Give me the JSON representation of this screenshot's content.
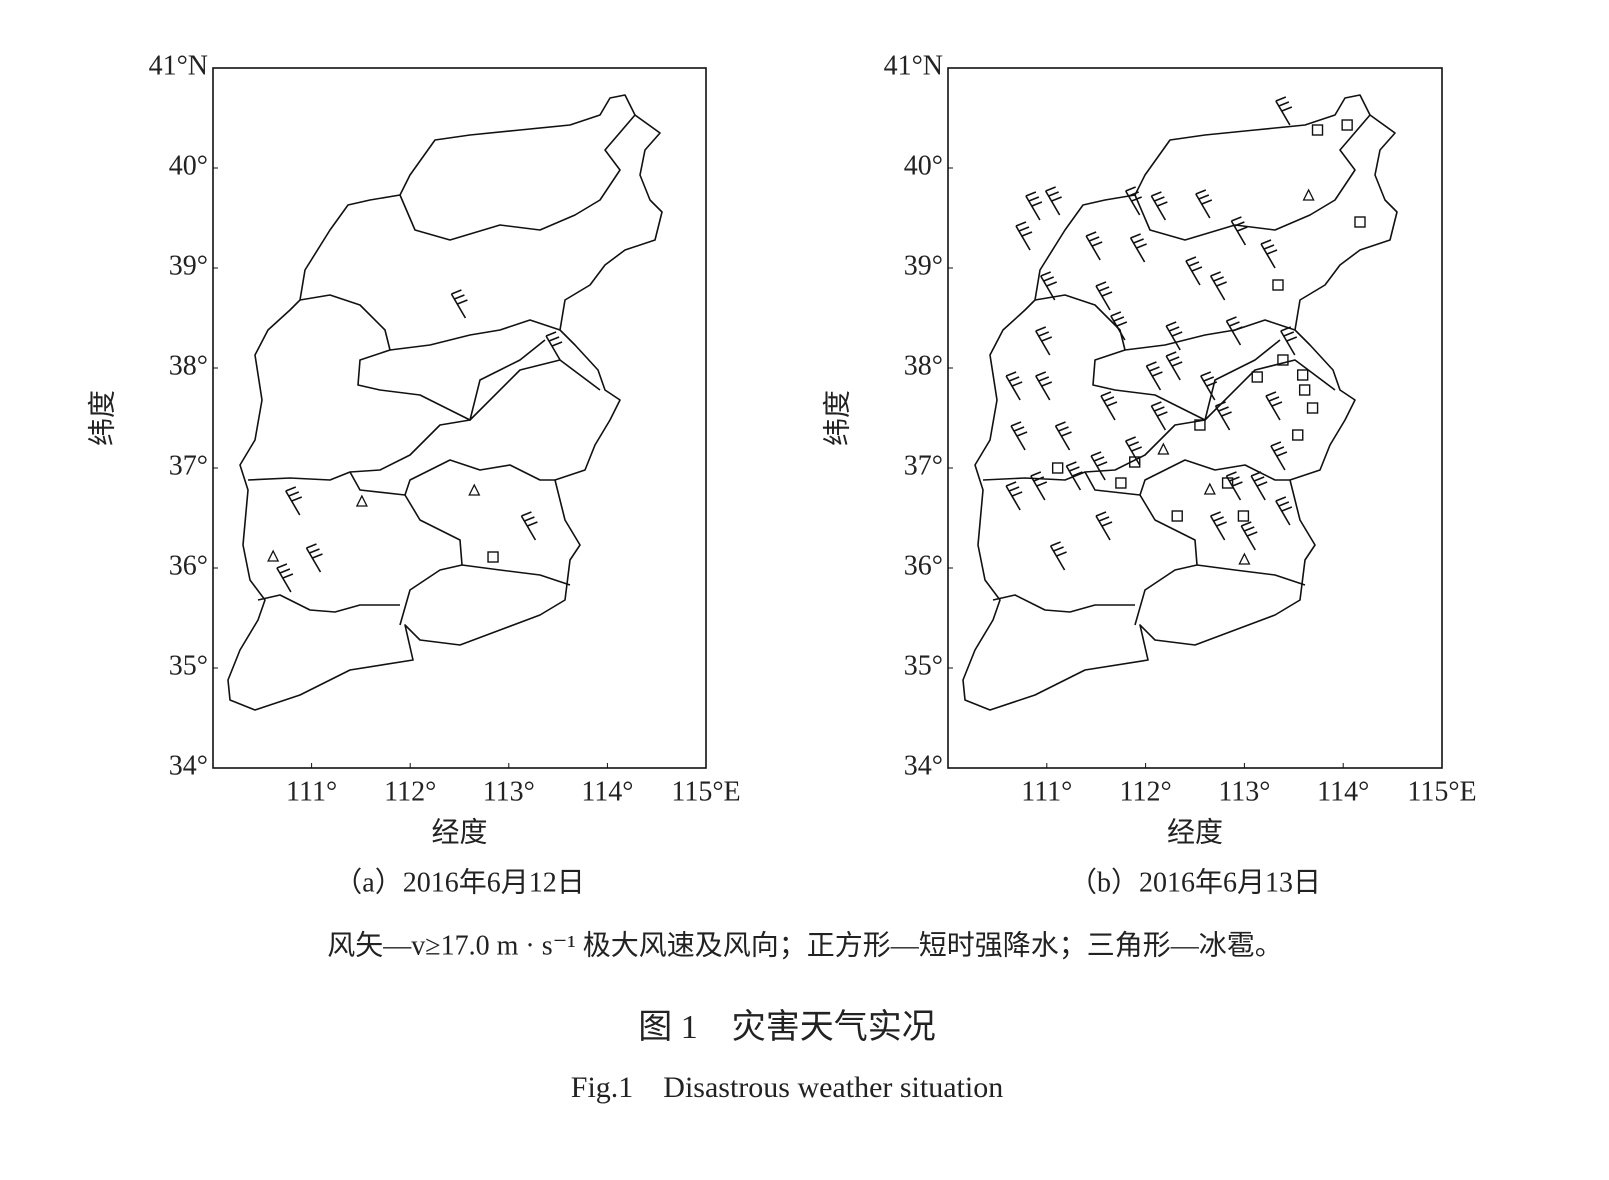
{
  "chart_data": [
    {
      "type": "map",
      "caption": "（a）2016年6月12日",
      "xlabel": "经度",
      "ylabel": "纬度",
      "xlim": [
        110,
        115
      ],
      "ylim": [
        34,
        41
      ],
      "xticks": [
        {
          "value": 111,
          "label": "111°"
        },
        {
          "value": 112,
          "label": "112°"
        },
        {
          "value": 113,
          "label": "113°"
        },
        {
          "value": 114,
          "label": "114°"
        },
        {
          "value": 115,
          "label": "115°E"
        }
      ],
      "yticks": [
        {
          "value": 34,
          "label": "34°"
        },
        {
          "value": 35,
          "label": "35°"
        },
        {
          "value": 36,
          "label": "36°"
        },
        {
          "value": 37,
          "label": "37°"
        },
        {
          "value": 38,
          "label": "38°"
        },
        {
          "value": 39,
          "label": "39°"
        },
        {
          "value": 40,
          "label": "40°"
        },
        {
          "value": 41,
          "label": "41°N"
        }
      ],
      "wind_barbs": {
        "lon": [
          112.56,
          113.52,
          110.88,
          113.27,
          111.09,
          110.79
        ],
        "lat": [
          38.5,
          38.08,
          36.53,
          36.28,
          35.96,
          35.76
        ]
      },
      "squares": {
        "lon": [
          112.84
        ],
        "lat": [
          36.11
        ]
      },
      "triangles": {
        "lon": [
          112.65,
          110.61,
          111.51
        ],
        "lat": [
          36.77,
          36.11,
          36.66
        ]
      }
    },
    {
      "type": "map",
      "caption": "（b）2016年6月13日",
      "xlabel": "经度",
      "ylabel": "纬度",
      "xlim": [
        110,
        115
      ],
      "ylim": [
        34,
        41
      ],
      "xticks": [
        {
          "value": 111,
          "label": "111°"
        },
        {
          "value": 112,
          "label": "112°"
        },
        {
          "value": 113,
          "label": "113°"
        },
        {
          "value": 114,
          "label": "114°"
        },
        {
          "value": 115,
          "label": "115°E"
        }
      ],
      "yticks": [
        {
          "value": 34,
          "label": "34°"
        },
        {
          "value": 35,
          "label": "35°"
        },
        {
          "value": 36,
          "label": "36°"
        },
        {
          "value": 37,
          "label": "37°"
        },
        {
          "value": 38,
          "label": "38°"
        },
        {
          "value": 39,
          "label": "39°"
        },
        {
          "value": 40,
          "label": "40°"
        },
        {
          "value": 41,
          "label": "41°N"
        }
      ],
      "wind_barbs": {
        "lon": [
          110.93,
          111.13,
          110.83,
          111.94,
          112.2,
          112.65,
          113.01,
          113.31,
          111.54,
          111.99,
          112.55,
          112.8,
          111.08,
          111.64,
          111.79,
          112.35,
          112.96,
          113.51,
          111.03,
          110.73,
          111.03,
          110.78,
          111.23,
          111.69,
          112.15,
          112.35,
          112.7,
          112.2,
          112.85,
          113.36,
          111.59,
          111.34,
          111.64,
          110.98,
          110.73,
          111.18,
          112.96,
          113.21,
          112.8,
          113.11,
          113.46,
          113.41,
          113.46,
          111.94
        ],
        "lat": [
          39.48,
          39.53,
          39.18,
          39.53,
          39.48,
          39.5,
          39.23,
          39.0,
          39.08,
          39.06,
          38.83,
          38.68,
          38.68,
          38.58,
          38.28,
          38.18,
          38.23,
          38.13,
          38.13,
          37.68,
          37.68,
          37.18,
          37.18,
          37.48,
          37.78,
          37.88,
          37.68,
          37.38,
          37.38,
          37.48,
          36.88,
          36.78,
          36.28,
          36.68,
          36.58,
          35.98,
          36.68,
          36.68,
          36.28,
          36.18,
          36.43,
          36.98,
          40.43,
          37.03
        ]
      },
      "squares": {
        "lon": [
          113.74,
          114.04,
          114.17,
          113.34,
          113.13,
          113.39,
          113.59,
          113.61,
          113.69,
          113.54,
          112.55,
          111.11,
          111.89,
          111.75,
          112.83,
          112.32,
          112.99
        ],
        "lat": [
          40.38,
          40.43,
          39.46,
          38.83,
          37.91,
          38.08,
          37.93,
          37.78,
          37.6,
          37.33,
          37.43,
          37.0,
          37.06,
          36.85,
          36.85,
          36.52,
          36.52
        ]
      },
      "triangles": {
        "lon": [
          113.65,
          112.65,
          113.0,
          112.18
        ],
        "lat": [
          39.72,
          36.78,
          36.08,
          37.18
        ]
      }
    }
  ],
  "legend_note": "风矢—v≥17.0 m · s⁻¹ 极大风速及风向；正方形—短时强降水；三角形—冰雹。",
  "figure_title": "图 1　灾害天气实况",
  "figure_title_en": "Fig.1　Disastrous weather situation"
}
